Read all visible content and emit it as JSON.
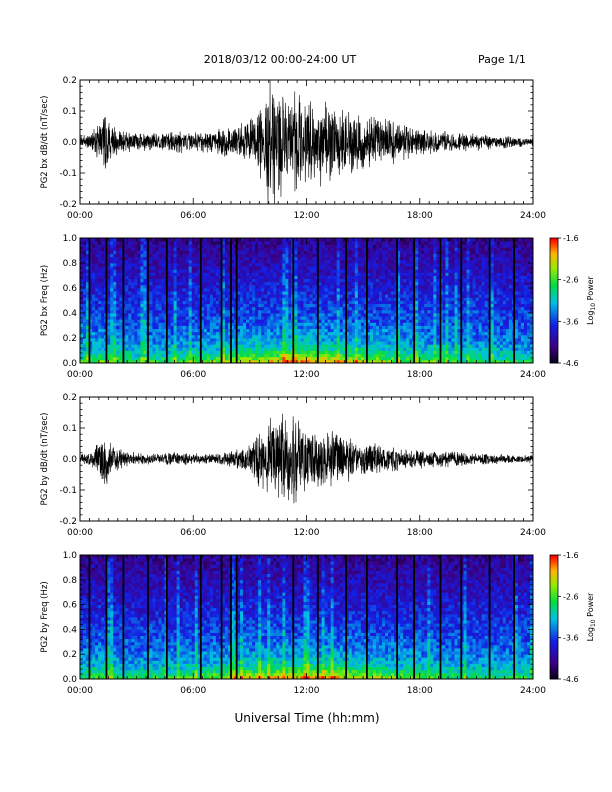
{
  "header": {
    "title": "2018/03/12  00:00-24:00 UT",
    "page": "Page 1/1"
  },
  "x_axis_title": "Universal Time (hh:mm)",
  "colorbar_label_html": "Log<sub>10</sub> Power",
  "colors": {
    "background": "#ffffff",
    "trace": "#000000",
    "gap": "#000000"
  },
  "chart_data": [
    {
      "type": "line",
      "ylabel": "PG2 bx dB/dt (nT/sec)",
      "xlim": [
        0,
        24
      ],
      "ylim": [
        -0.2,
        0.2
      ],
      "x_ticks": [
        "00:00",
        "06:00",
        "12:00",
        "18:00",
        "24:00"
      ],
      "y_ticks": [
        "-0.2",
        "-0.1",
        "0.0",
        "0.1",
        "0.2"
      ],
      "envelope": {
        "x_hours": [
          0,
          0.5,
          1.0,
          1.3,
          1.5,
          2.0,
          3.0,
          4.0,
          5.0,
          6.0,
          7.0,
          8.0,
          9.0,
          9.5,
          10.0,
          10.5,
          11.0,
          11.5,
          12.0,
          13.0,
          14.0,
          15.0,
          16.0,
          17.0,
          18.0,
          19.0,
          20.0,
          21.0,
          22.0,
          23.0,
          24.0
        ],
        "amplitude": [
          0.02,
          0.03,
          0.06,
          0.1,
          0.08,
          0.05,
          0.03,
          0.035,
          0.04,
          0.035,
          0.04,
          0.06,
          0.07,
          0.12,
          0.22,
          0.2,
          0.18,
          0.2,
          0.15,
          0.15,
          0.12,
          0.1,
          0.08,
          0.07,
          0.05,
          0.04,
          0.035,
          0.03,
          0.025,
          0.02,
          0.015
        ]
      }
    },
    {
      "type": "heatmap",
      "ylabel": "PG2 bx Freq (Hz)",
      "xlim": [
        0,
        24
      ],
      "ylim": [
        0,
        1.0
      ],
      "x_ticks": [
        "00:00",
        "06:00",
        "12:00",
        "18:00",
        "24:00"
      ],
      "y_ticks": [
        "0.0",
        "0.2",
        "0.4",
        "0.6",
        "0.8",
        "1.0"
      ],
      "colorbar": {
        "label": "Log10 Power",
        "range": [
          -4.6,
          -1.6
        ],
        "ticks": [
          "-1.6",
          "-2.6",
          "-3.6",
          "-4.6"
        ]
      },
      "data_gaps_hours": [
        0.5,
        1.4,
        2.3,
        3.6,
        4.6,
        6.4,
        7.5,
        8.0,
        8.3,
        11.3,
        12.6,
        14.1,
        15.2,
        16.8,
        17.7,
        19.1,
        20.2,
        21.7,
        23.0
      ]
    },
    {
      "type": "line",
      "ylabel": "PG2 by dB/dt (nT/sec)",
      "xlim": [
        0,
        24
      ],
      "ylim": [
        -0.2,
        0.2
      ],
      "x_ticks": [
        "00:00",
        "06:00",
        "12:00",
        "18:00",
        "24:00"
      ],
      "y_ticks": [
        "-0.2",
        "-0.1",
        "0.0",
        "0.1",
        "0.2"
      ],
      "envelope": {
        "x_hours": [
          0,
          0.5,
          1.0,
          1.3,
          1.5,
          2.0,
          3.0,
          4.0,
          5.0,
          6.0,
          7.0,
          8.0,
          9.0,
          9.5,
          10.0,
          10.5,
          11.0,
          11.5,
          12.0,
          13.0,
          14.0,
          15.0,
          16.0,
          17.0,
          18.0,
          19.0,
          20.0,
          21.0,
          22.0,
          23.0,
          24.0
        ],
        "amplitude": [
          0.015,
          0.03,
          0.06,
          0.11,
          0.07,
          0.04,
          0.02,
          0.02,
          0.025,
          0.02,
          0.02,
          0.03,
          0.05,
          0.1,
          0.14,
          0.16,
          0.18,
          0.16,
          0.12,
          0.1,
          0.08,
          0.06,
          0.05,
          0.04,
          0.035,
          0.03,
          0.025,
          0.02,
          0.02,
          0.015,
          0.015
        ]
      }
    },
    {
      "type": "heatmap",
      "ylabel": "PG2 by Freq (Hz)",
      "xlim": [
        0,
        24
      ],
      "ylim": [
        0,
        1.0
      ],
      "x_ticks": [
        "00:00",
        "06:00",
        "12:00",
        "18:00",
        "24:00"
      ],
      "y_ticks": [
        "0.0",
        "0.2",
        "0.4",
        "0.6",
        "0.8",
        "1.0"
      ],
      "colorbar": {
        "label": "Log10 Power",
        "range": [
          -4.6,
          -1.6
        ],
        "ticks": [
          "-1.6",
          "-2.6",
          "-3.6",
          "-4.6"
        ]
      },
      "data_gaps_hours": [
        0.5,
        1.4,
        2.3,
        3.6,
        4.6,
        6.4,
        7.5,
        8.0,
        8.3,
        11.3,
        12.6,
        14.1,
        15.2,
        16.8,
        17.7,
        19.1,
        20.2,
        21.7,
        23.0
      ]
    }
  ]
}
